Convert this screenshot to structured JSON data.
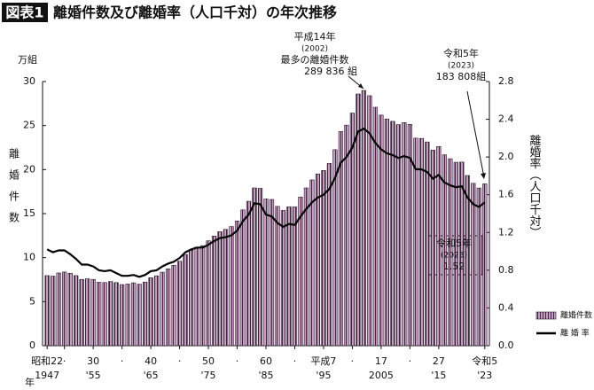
{
  "chart_data": {
    "type": "bar",
    "title_tag": "図表1",
    "title": "離婚件数及び離婚率（人口千対）の年次推移",
    "y_unit": "万組",
    "ylabel": "離婚件数",
    "y2label": "離婚率（人口千対）",
    "xlabel": "年",
    "x": [
      1947,
      1948,
      1949,
      1950,
      1951,
      1952,
      1953,
      1954,
      1955,
      1956,
      1957,
      1958,
      1959,
      1960,
      1961,
      1962,
      1963,
      1964,
      1965,
      1966,
      1967,
      1968,
      1969,
      1970,
      1971,
      1972,
      1973,
      1974,
      1975,
      1976,
      1977,
      1978,
      1979,
      1980,
      1981,
      1982,
      1983,
      1984,
      1985,
      1986,
      1987,
      1988,
      1989,
      1990,
      1991,
      1992,
      1993,
      1994,
      1995,
      1996,
      1997,
      1998,
      1999,
      2000,
      2001,
      2002,
      2003,
      2004,
      2005,
      2006,
      2007,
      2008,
      2009,
      2010,
      2011,
      2012,
      2013,
      2014,
      2015,
      2016,
      2017,
      2018,
      2019,
      2020,
      2021,
      2022,
      2023
    ],
    "series": [
      {
        "name": "離婚件数",
        "type": "bar",
        "color": "#c89ac4",
        "values": [
          7.96,
          7.9,
          8.26,
          8.37,
          8.23,
          7.96,
          7.53,
          7.6,
          7.53,
          7.2,
          7.17,
          7.29,
          7.17,
          6.94,
          7.0,
          7.14,
          6.99,
          7.23,
          7.72,
          7.94,
          8.35,
          8.73,
          9.13,
          9.59,
          10.36,
          10.84,
          11.19,
          11.36,
          11.91,
          12.45,
          12.95,
          13.21,
          13.53,
          14.17,
          15.42,
          16.4,
          17.92,
          17.87,
          16.66,
          16.61,
          15.82,
          15.36,
          15.78,
          15.76,
          16.89,
          17.92,
          18.83,
          19.51,
          19.9,
          20.7,
          22.26,
          24.32,
          25.05,
          26.42,
          28.59,
          28.9836,
          28.39,
          27.08,
          26.19,
          25.75,
          25.48,
          25.11,
          25.34,
          25.14,
          23.57,
          23.54,
          23.14,
          22.21,
          22.62,
          21.68,
          21.23,
          20.83,
          20.85,
          19.33,
          18.44,
          17.91,
          18.3808
        ]
      },
      {
        "name": "離 婚 率",
        "type": "line",
        "axis": "y2",
        "color": "#000000",
        "values": [
          1.02,
          0.99,
          1.01,
          1.01,
          0.97,
          0.92,
          0.86,
          0.86,
          0.84,
          0.8,
          0.79,
          0.8,
          0.77,
          0.74,
          0.74,
          0.75,
          0.73,
          0.75,
          0.79,
          0.8,
          0.84,
          0.87,
          0.89,
          0.93,
          0.99,
          1.02,
          1.04,
          1.04,
          1.07,
          1.11,
          1.14,
          1.15,
          1.17,
          1.22,
          1.32,
          1.39,
          1.51,
          1.5,
          1.39,
          1.37,
          1.3,
          1.26,
          1.29,
          1.28,
          1.37,
          1.45,
          1.52,
          1.57,
          1.6,
          1.66,
          1.78,
          1.94,
          2.0,
          2.1,
          2.27,
          2.3,
          2.25,
          2.15,
          2.08,
          2.04,
          2.02,
          1.99,
          2.01,
          1.99,
          1.87,
          1.87,
          1.84,
          1.77,
          1.81,
          1.73,
          1.7,
          1.68,
          1.69,
          1.57,
          1.5,
          1.47,
          1.52
        ]
      }
    ],
    "xlim": [
      1946.2,
      2023.8
    ],
    "ylim": [
      0,
      30
    ],
    "yticks": [
      0,
      5,
      10,
      15,
      20,
      25,
      30
    ],
    "y2lim": [
      0,
      2.8
    ],
    "y2ticks": [
      {
        "value": 0,
        "label": "0.0"
      },
      0.4,
      0.8,
      1.2,
      1.6,
      {
        "value": 2,
        "label": "2.0"
      },
      2.4,
      2.8
    ],
    "xticks": [
      {
        "value": 1947,
        "label": "昭和22"
      },
      {
        "value": 1950,
        "label": "·"
      },
      {
        "value": 1955,
        "label": "30"
      },
      {
        "value": 1960,
        "label": "·"
      },
      {
        "value": 1965,
        "label": "40"
      },
      {
        "value": 1970,
        "label": "·"
      },
      {
        "value": 1975,
        "label": "50"
      },
      {
        "value": 1980,
        "label": "·"
      },
      {
        "value": 1985,
        "label": "60"
      },
      {
        "value": 1990,
        "label": "·"
      },
      {
        "value": 1995,
        "label": "平成7"
      },
      {
        "value": 2000,
        "label": "·"
      },
      {
        "value": 2005,
        "label": "17"
      },
      {
        "value": 2010,
        "label": "·"
      },
      {
        "value": 2015,
        "label": "27"
      },
      {
        "value": 2023,
        "label": "令和5"
      }
    ],
    "xticks_western": [
      {
        "value": 1947,
        "label": "1947"
      },
      {
        "value": 1955,
        "label": "'55"
      },
      {
        "value": 1965,
        "label": "'65"
      },
      {
        "value": 1975,
        "label": "'75"
      },
      {
        "value": 1985,
        "label": "'85"
      },
      {
        "value": 1995,
        "label": "'95"
      },
      {
        "value": 2005,
        "label": "2005"
      },
      {
        "value": 2015,
        "label": "'15"
      },
      {
        "value": 2023,
        "label": "'23"
      }
    ],
    "annotations": [
      {
        "text": [
          "平成14年",
          "(2002)",
          "最多の離婚件数",
          "289 836 組"
        ]
      },
      {
        "text": [
          "令和5年",
          "(2023)",
          "183 808組"
        ]
      },
      {
        "text": [
          "令和5年",
          "(2023)",
          "1.52"
        ]
      }
    ]
  }
}
